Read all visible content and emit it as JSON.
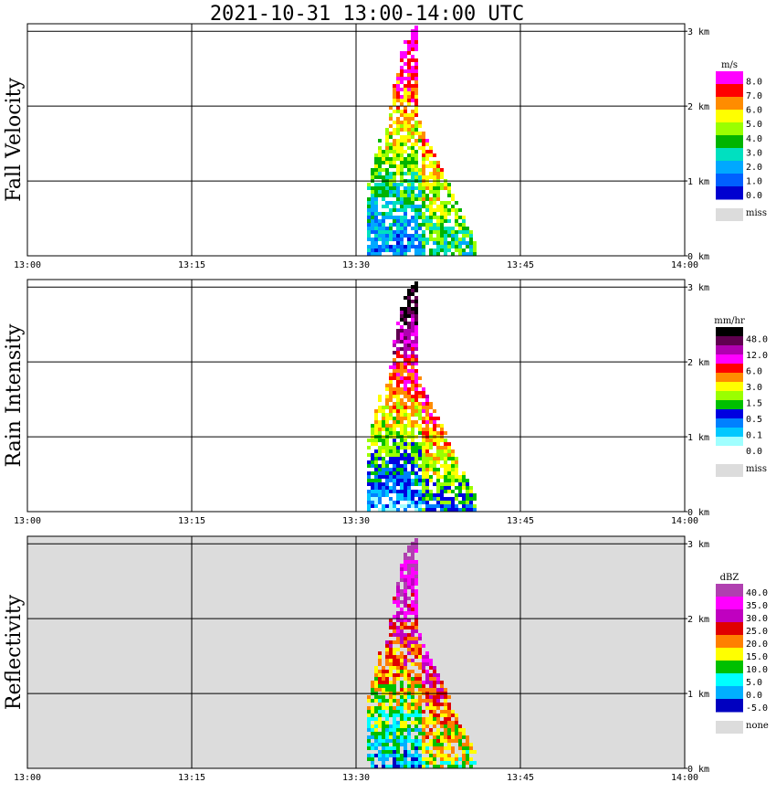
{
  "title": "2021-10-31   13:00-14:00 UTC",
  "x_ticks": [
    "13:00",
    "13:15",
    "13:30",
    "13:45",
    "14:00"
  ],
  "y_ticks": [
    "0 km",
    "1 km",
    "2 km",
    "3 km"
  ],
  "chart_data": [
    {
      "type": "heatmap",
      "ylabel": "Fall Velocity",
      "colorbar": {
        "unit": "m/s",
        "labels": [
          "8.0",
          "7.0",
          "6.0",
          "5.0",
          "4.0",
          "3.0",
          "2.0",
          "1.0",
          "0.0"
        ],
        "colors": [
          "#ff00ff",
          "#ff0000",
          "#ff8c00",
          "#ffff00",
          "#9aff00",
          "#00b400",
          "#00e0c0",
          "#00a8ff",
          "#0060ff",
          "#0000d0"
        ],
        "missing_label": "miss",
        "missing_color": "#dcdcdc"
      },
      "background": "#ffffff",
      "xlim": [
        "13:00",
        "14:00"
      ],
      "ylim_km": [
        0,
        3.1
      ],
      "echo_time_range": [
        "13:31",
        "13:41"
      ],
      "echo_top_km": 3.1
    },
    {
      "type": "heatmap",
      "ylabel": "Rain Intensity",
      "colorbar": {
        "unit": "mm/hr",
        "labels": [
          "48.0",
          "12.0",
          "6.0",
          "3.0",
          "1.5",
          "0.5",
          "0.1",
          "0.0"
        ],
        "colors": [
          "#000000",
          "#600050",
          "#b000b0",
          "#ff00ff",
          "#ff0000",
          "#ff8c00",
          "#ffff00",
          "#9aff00",
          "#00c000",
          "#0000e0",
          "#0080ff",
          "#00c8ff",
          "#a0ffff",
          "#ffffff"
        ],
        "missing_label": "miss",
        "missing_color": "#dcdcdc"
      },
      "background": "#ffffff",
      "xlim": [
        "13:00",
        "14:00"
      ],
      "ylim_km": [
        0,
        3.1
      ],
      "echo_time_range": [
        "13:31",
        "13:41"
      ],
      "echo_top_km": 3.1
    },
    {
      "type": "heatmap",
      "ylabel": "Reflectivity",
      "colorbar": {
        "unit": "dBZ",
        "labels": [
          "40.0",
          "35.0",
          "30.0",
          "25.0",
          "20.0",
          "15.0",
          "10.0",
          "5.0",
          "0.0",
          "-5.0"
        ],
        "colors": [
          "#b040b0",
          "#ff00ff",
          "#c000c0",
          "#e00000",
          "#ff8000",
          "#ffff00",
          "#00c000",
          "#00ffff",
          "#00b0ff",
          "#0000c0"
        ],
        "missing_label": "none",
        "missing_color": "#dcdcdc"
      },
      "background": "#dcdcdc",
      "xlim": [
        "13:00",
        "14:00"
      ],
      "ylim_km": [
        0,
        3.1
      ],
      "echo_time_range": [
        "13:31",
        "13:41"
      ],
      "echo_top_km": 3.1
    }
  ]
}
